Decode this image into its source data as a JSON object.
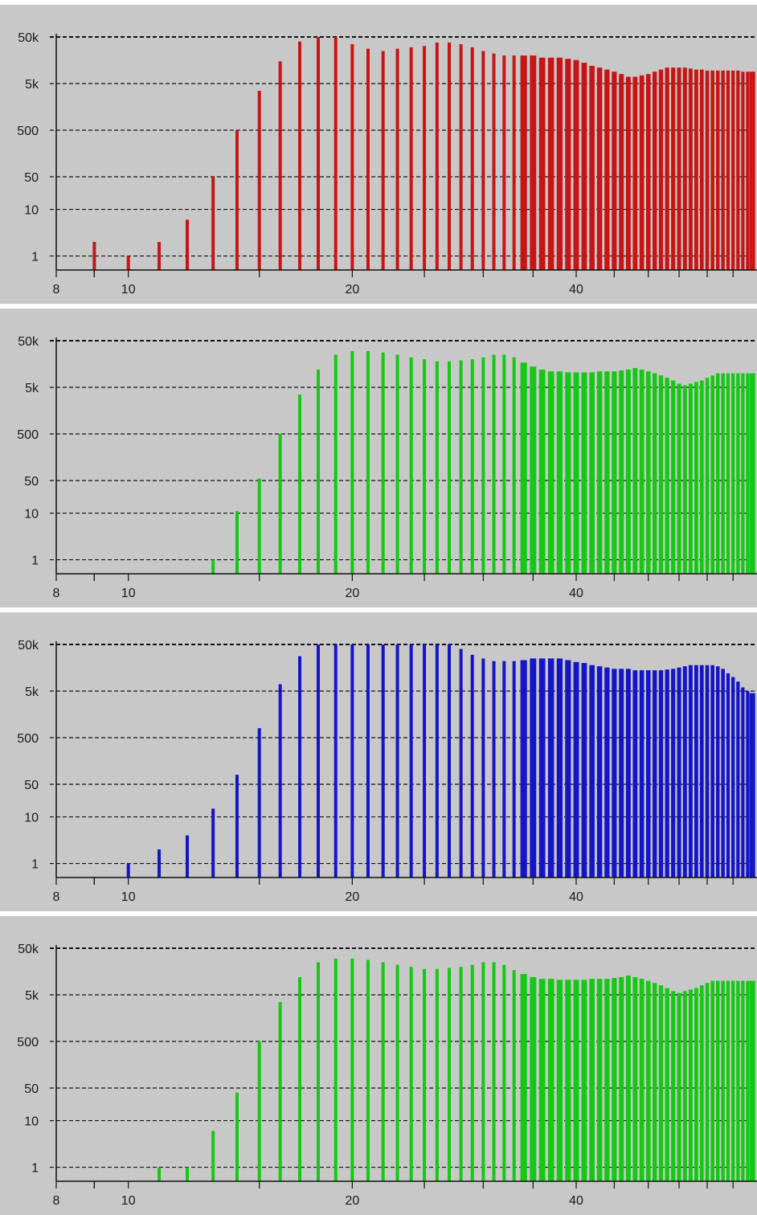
{
  "chart_data": [
    {
      "type": "bar",
      "color": "#c81414",
      "yscale": "log",
      "ylim": [
        0.5,
        50000
      ],
      "yticks": [
        {
          "value": 1,
          "label": "1"
        },
        {
          "value": 10,
          "label": "10"
        },
        {
          "value": 50,
          "label": "50"
        },
        {
          "value": 500,
          "label": "500"
        },
        {
          "value": 5000,
          "label": "5k"
        },
        {
          "value": 50000,
          "label": "50k"
        }
      ],
      "xscale": "log",
      "xlim": [
        8,
        70
      ],
      "xticks": [
        {
          "value": 8,
          "label": "8"
        },
        {
          "value": 9,
          "label": ""
        },
        {
          "value": 10,
          "label": "10"
        },
        {
          "value": 20,
          "label": "20"
        },
        {
          "value": 40,
          "label": "40"
        }
      ],
      "grid": true,
      "x": [
        9,
        10,
        11,
        12,
        13,
        14,
        15,
        16,
        17,
        18,
        19,
        20,
        21,
        22,
        23,
        24,
        25,
        26,
        27,
        28,
        29,
        30,
        31,
        32,
        33,
        34,
        35,
        36,
        37,
        38,
        39,
        40,
        41,
        42,
        43,
        44,
        45,
        46,
        47,
        48,
        49,
        50,
        51,
        52,
        53,
        54,
        55,
        56,
        57,
        58,
        59,
        60,
        61,
        62,
        63,
        64,
        65,
        66,
        67,
        68,
        69
      ],
      "values": [
        2,
        1,
        2,
        6,
        50,
        500,
        3500,
        15000,
        40000,
        50000,
        50000,
        35000,
        28000,
        25000,
        28000,
        30000,
        32000,
        38000,
        38000,
        35000,
        30000,
        25000,
        22000,
        20000,
        20000,
        20000,
        20000,
        18000,
        18000,
        18000,
        17000,
        16000,
        14000,
        12000,
        11000,
        10000,
        9000,
        8000,
        7000,
        7000,
        7500,
        8000,
        9000,
        10000,
        11000,
        11000,
        11000,
        11000,
        10500,
        10000,
        10000,
        9500,
        9500,
        9500,
        9500,
        9500,
        9500,
        9500,
        9000,
        9000,
        9000
      ]
    },
    {
      "type": "bar",
      "color": "#14c814",
      "yscale": "log",
      "ylim": [
        0.5,
        50000
      ],
      "yticks": [
        {
          "value": 1,
          "label": "1"
        },
        {
          "value": 10,
          "label": "10"
        },
        {
          "value": 50,
          "label": "50"
        },
        {
          "value": 500,
          "label": "500"
        },
        {
          "value": 5000,
          "label": "5k"
        },
        {
          "value": 50000,
          "label": "50k"
        }
      ],
      "xscale": "log",
      "xlim": [
        8,
        70
      ],
      "xticks": [
        {
          "value": 8,
          "label": "8"
        },
        {
          "value": 9,
          "label": ""
        },
        {
          "value": 10,
          "label": "10"
        },
        {
          "value": 20,
          "label": "20"
        },
        {
          "value": 40,
          "label": "40"
        }
      ],
      "grid": true,
      "x": [
        13,
        14,
        15,
        16,
        17,
        18,
        19,
        20,
        21,
        22,
        23,
        24,
        25,
        26,
        27,
        28,
        29,
        30,
        31,
        32,
        33,
        34,
        35,
        36,
        37,
        38,
        39,
        40,
        41,
        42,
        43,
        44,
        45,
        46,
        47,
        48,
        49,
        50,
        51,
        52,
        53,
        54,
        55,
        56,
        57,
        58,
        59,
        60,
        61,
        62,
        63,
        64,
        65,
        66,
        67,
        68,
        69
      ],
      "values": [
        1,
        11,
        55,
        500,
        3500,
        12000,
        25000,
        30000,
        30000,
        28000,
        25000,
        22000,
        20000,
        18000,
        18000,
        19000,
        20000,
        22000,
        25000,
        25000,
        22000,
        17000,
        14000,
        12000,
        11000,
        11000,
        10500,
        10500,
        10500,
        10500,
        11000,
        11000,
        11000,
        11500,
        12000,
        13000,
        12000,
        11000,
        10000,
        9000,
        8000,
        7000,
        6000,
        5500,
        6000,
        6500,
        7000,
        8000,
        9000,
        10000,
        10000,
        10000,
        10000,
        10000,
        10000,
        10000,
        10000
      ]
    },
    {
      "type": "bar",
      "color": "#1414c8",
      "yscale": "log",
      "ylim": [
        0.5,
        50000
      ],
      "yticks": [
        {
          "value": 1,
          "label": "1"
        },
        {
          "value": 10,
          "label": "10"
        },
        {
          "value": 50,
          "label": "50"
        },
        {
          "value": 500,
          "label": "500"
        },
        {
          "value": 5000,
          "label": "5k"
        },
        {
          "value": 50000,
          "label": "50k"
        }
      ],
      "xscale": "log",
      "xlim": [
        8,
        70
      ],
      "xticks": [
        {
          "value": 8,
          "label": "8"
        },
        {
          "value": 9,
          "label": ""
        },
        {
          "value": 10,
          "label": "10"
        },
        {
          "value": 20,
          "label": "20"
        },
        {
          "value": 40,
          "label": "40"
        }
      ],
      "grid": true,
      "x": [
        10,
        11,
        12,
        13,
        14,
        15,
        16,
        17,
        18,
        19,
        20,
        21,
        22,
        23,
        24,
        25,
        26,
        27,
        28,
        29,
        30,
        31,
        32,
        33,
        34,
        35,
        36,
        37,
        38,
        39,
        40,
        41,
        42,
        43,
        44,
        45,
        46,
        47,
        48,
        49,
        50,
        51,
        52,
        53,
        54,
        55,
        56,
        57,
        58,
        59,
        60,
        61,
        62,
        63,
        64,
        65,
        66,
        67,
        68,
        69
      ],
      "values": [
        1,
        2,
        4,
        15,
        80,
        800,
        7000,
        28000,
        50000,
        50000,
        50000,
        50000,
        50000,
        50000,
        50000,
        50000,
        50000,
        50000,
        40000,
        30000,
        25000,
        22000,
        22000,
        22000,
        23000,
        25000,
        25000,
        25000,
        25000,
        23000,
        21000,
        20000,
        18000,
        17000,
        16000,
        15000,
        15000,
        15000,
        14000,
        14000,
        14000,
        14000,
        14000,
        14500,
        15000,
        16000,
        17000,
        18000,
        18000,
        18000,
        18000,
        18000,
        17000,
        15000,
        12000,
        10000,
        8000,
        6000,
        5000,
        4500
      ]
    },
    {
      "type": "bar",
      "color": "#14c814",
      "yscale": "log",
      "ylim": [
        0.5,
        50000
      ],
      "yticks": [
        {
          "value": 1,
          "label": "1"
        },
        {
          "value": 10,
          "label": "10"
        },
        {
          "value": 50,
          "label": "50"
        },
        {
          "value": 500,
          "label": "500"
        },
        {
          "value": 5000,
          "label": "5k"
        },
        {
          "value": 50000,
          "label": "50k"
        }
      ],
      "xscale": "log",
      "xlim": [
        8,
        70
      ],
      "xticks": [
        {
          "value": 8,
          "label": "8"
        },
        {
          "value": 9,
          "label": ""
        },
        {
          "value": 10,
          "label": "10"
        },
        {
          "value": 20,
          "label": "20"
        },
        {
          "value": 40,
          "label": "40"
        }
      ],
      "grid": true,
      "x": [
        11,
        12,
        13,
        14,
        15,
        16,
        17,
        18,
        19,
        20,
        21,
        22,
        23,
        24,
        25,
        26,
        27,
        28,
        29,
        30,
        31,
        32,
        33,
        34,
        35,
        36,
        37,
        38,
        39,
        40,
        41,
        42,
        43,
        44,
        45,
        46,
        47,
        48,
        49,
        50,
        51,
        52,
        53,
        54,
        55,
        56,
        57,
        58,
        59,
        60,
        61,
        62,
        63,
        64,
        65,
        66,
        67,
        68,
        69
      ],
      "values": [
        1,
        1,
        6,
        40,
        500,
        3500,
        12000,
        25000,
        30000,
        30000,
        28000,
        25000,
        22000,
        20000,
        18000,
        18000,
        19000,
        20000,
        22000,
        25000,
        25000,
        22000,
        17000,
        14000,
        12000,
        11000,
        11000,
        10500,
        10500,
        10500,
        10500,
        11000,
        11000,
        11000,
        11500,
        12000,
        13000,
        12000,
        11000,
        10000,
        9000,
        8000,
        7000,
        6000,
        5500,
        6000,
        6500,
        7000,
        8000,
        9000,
        10000,
        10000,
        10000,
        10000,
        10000,
        10000,
        10000,
        10000,
        10000
      ]
    }
  ]
}
